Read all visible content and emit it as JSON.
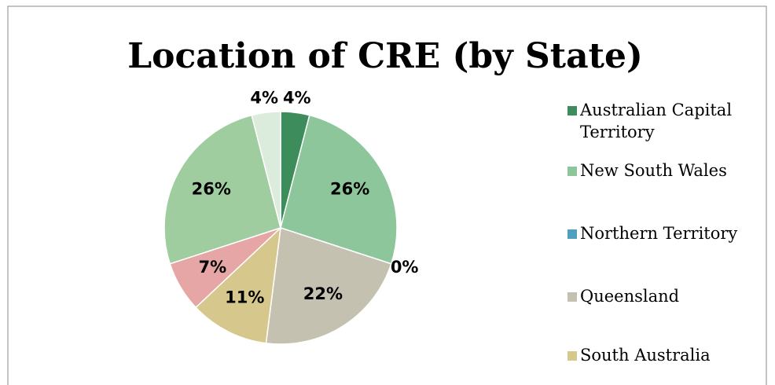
{
  "chart_data": {
    "type": "pie",
    "title": "Location of CRE (by State)",
    "categories": [
      "Australian Capital Territory",
      "New South Wales",
      "Northern Territory",
      "Queensland",
      "South Australia",
      null,
      null,
      null
    ],
    "values": [
      4,
      26,
      0,
      22,
      11,
      7,
      26,
      4
    ],
    "value_labels": [
      "4%",
      "26%",
      "0%",
      "22%",
      "11%",
      "7%",
      "26%",
      "4%"
    ],
    "colors": [
      "#3d8c5c",
      "#8cc69a",
      "#4fa0bf",
      "#c5c1b0",
      "#d6c78c",
      "#e6a6a6",
      "#9fcd9f",
      "#dcecdc"
    ],
    "legend": "right"
  }
}
